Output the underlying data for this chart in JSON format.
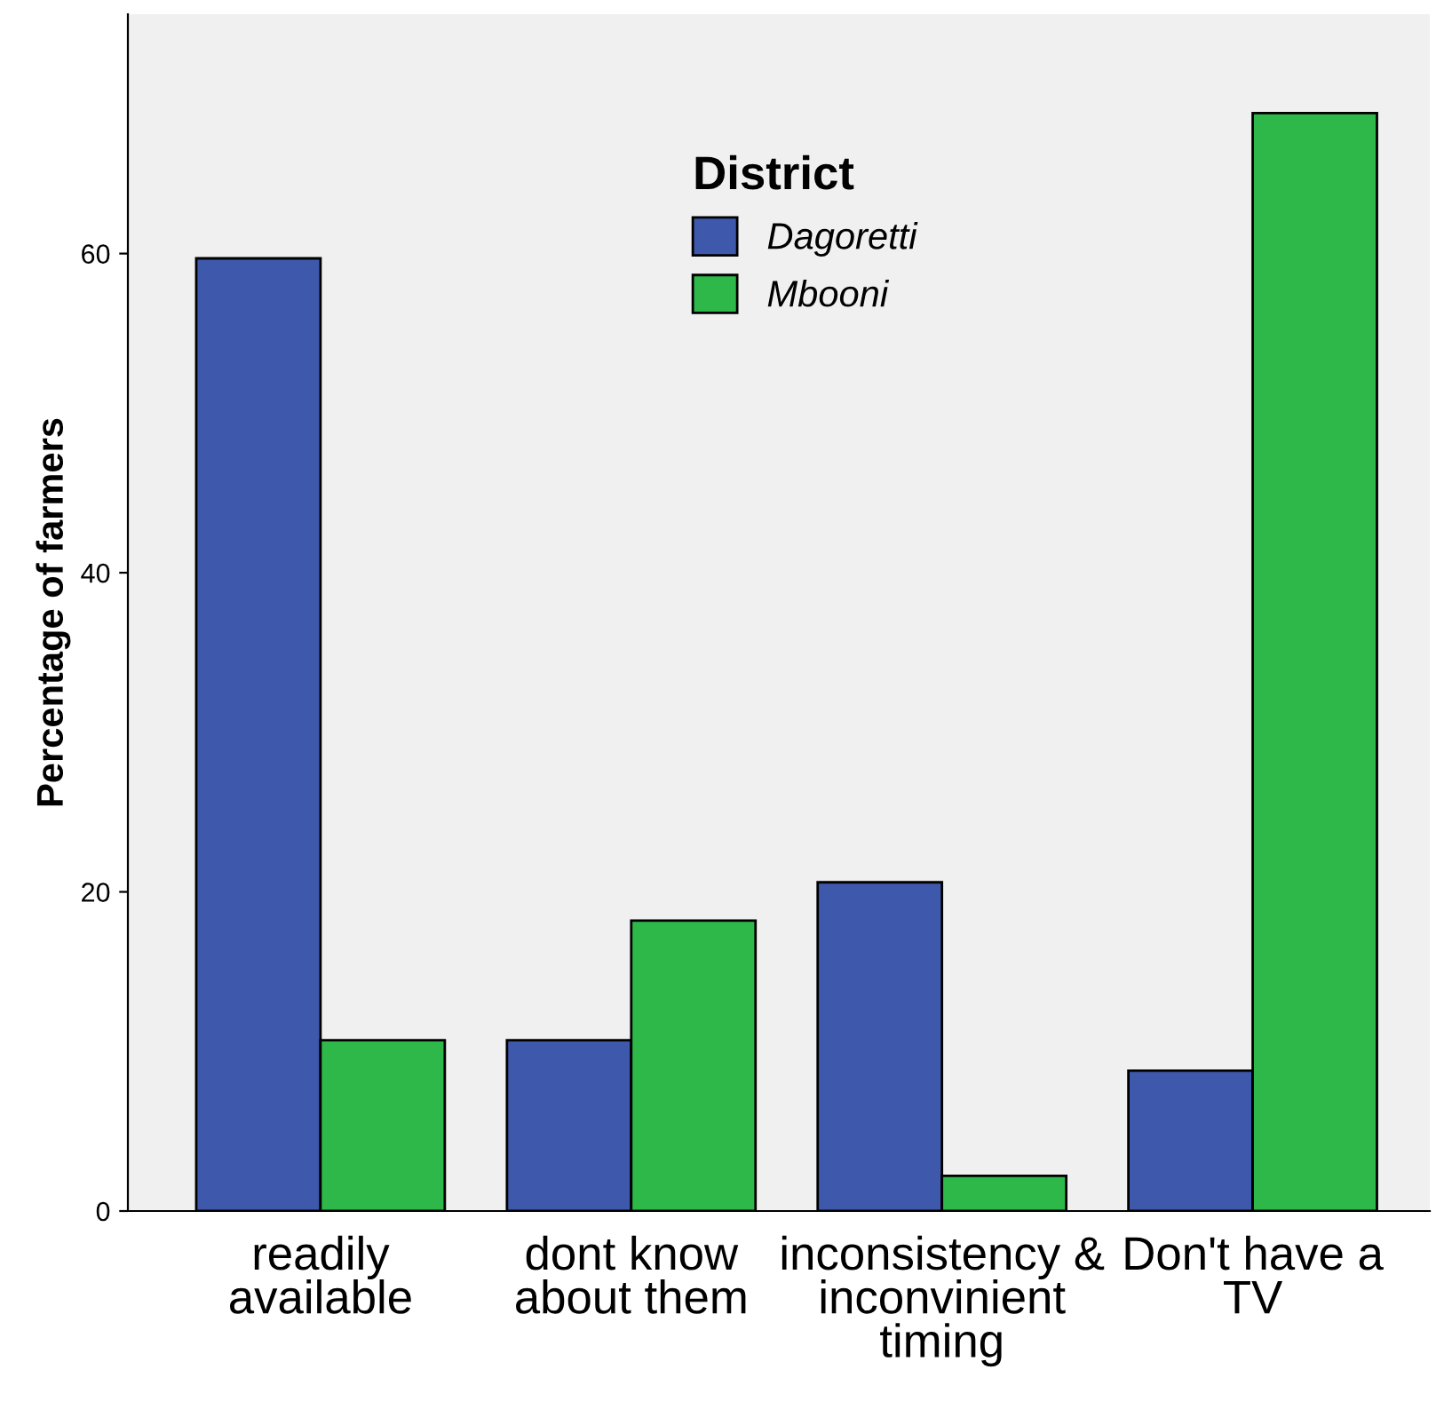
{
  "chart_data": {
    "type": "bar",
    "categories": [
      "readily\navailable",
      "dont know\nabout them",
      "inconsistency &\ninconvinient\ntiming",
      "Don't have a\nTV"
    ],
    "series": [
      {
        "name": "Dagoretti",
        "color": "#3e58ac",
        "values": [
          59.7,
          10.7,
          20.6,
          8.8
        ]
      },
      {
        "name": "Mbooni",
        "color": "#2eb84a",
        "values": [
          10.7,
          18.2,
          2.2,
          68.8
        ]
      }
    ],
    "ylabel": "Percentage of farmers",
    "legend_title": "District",
    "legend": "top",
    "ylim": [
      0,
      75
    ],
    "yticks": [
      0,
      20,
      40,
      60
    ],
    "grid": false
  }
}
